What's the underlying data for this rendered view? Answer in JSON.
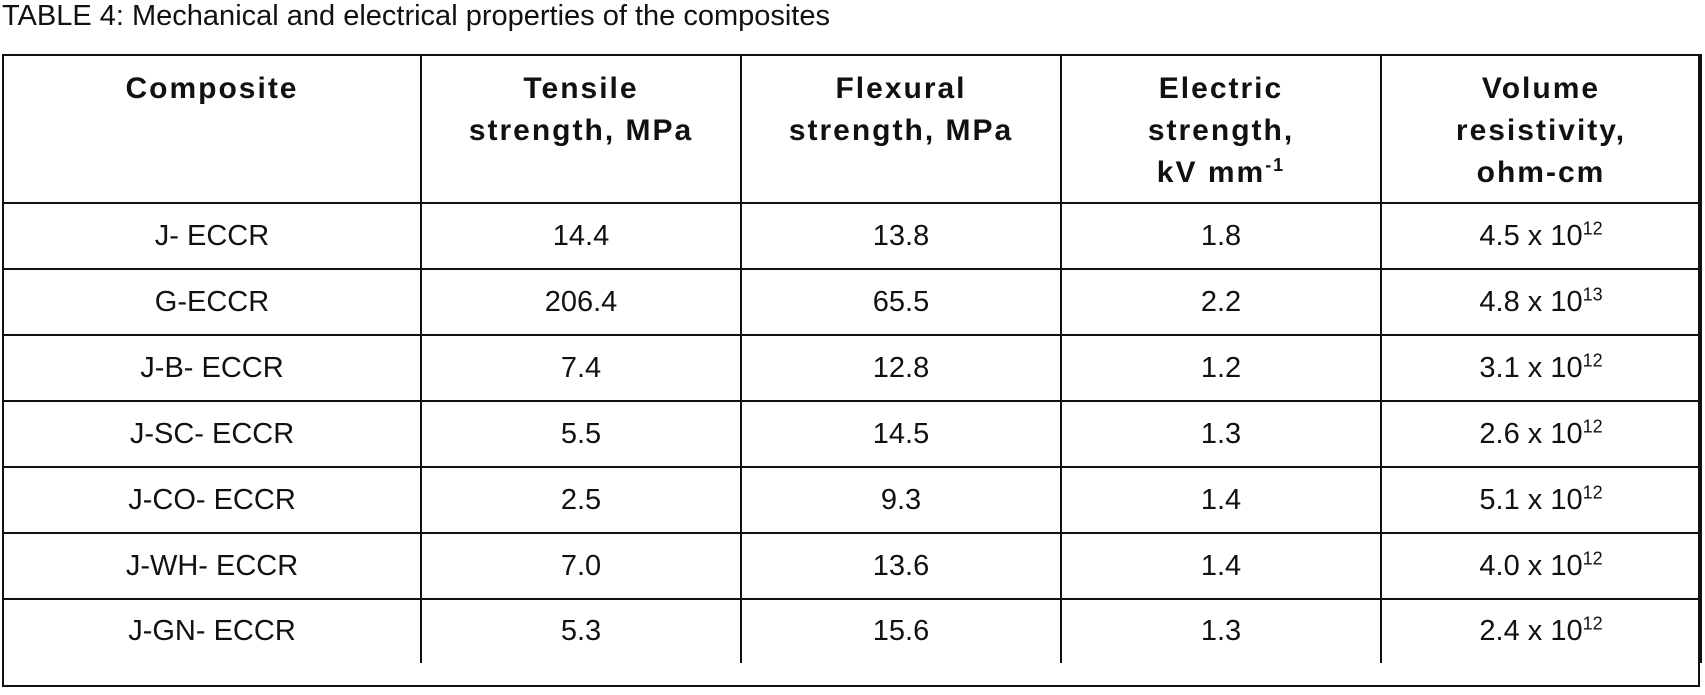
{
  "caption": "TABLE 4: Mechanical and electrical properties of the composites",
  "headers": {
    "composite": "Composite",
    "tensile_l1": "Tensile",
    "tensile_l2": "strength, MPa",
    "flexural_l1": "Flexural",
    "flexural_l2": "strength, MPa",
    "electric_l1": "Electric",
    "electric_l2": "strength,",
    "electric_l3": "kV mm",
    "electric_exp": "-1",
    "volume_l1": "Volume",
    "volume_l2": "resistivity,",
    "volume_l3": "ohm-cm"
  },
  "rows": [
    {
      "composite": "J- ECCR",
      "tensile": "14.4",
      "flexural": "13.8",
      "electric": "1.8",
      "vr_base": "4.5 x 10",
      "vr_exp": "12"
    },
    {
      "composite": "G-ECCR",
      "tensile": "206.4",
      "flexural": "65.5",
      "electric": "2.2",
      "vr_base": "4.8 x 10",
      "vr_exp": "13"
    },
    {
      "composite": "J-B- ECCR",
      "tensile": "7.4",
      "flexural": "12.8",
      "electric": "1.2",
      "vr_base": "3.1 x 10",
      "vr_exp": "12"
    },
    {
      "composite": "J-SC- ECCR",
      "tensile": "5.5",
      "flexural": "14.5",
      "electric": "1.3",
      "vr_base": "2.6 x 10",
      "vr_exp": "12"
    },
    {
      "composite": "J-CO- ECCR",
      "tensile": "2.5",
      "flexural": "9.3",
      "electric": "1.4",
      "vr_base": "5.1 x 10",
      "vr_exp": "12"
    },
    {
      "composite": "J-WH- ECCR",
      "tensile": "7.0",
      "flexural": "13.6",
      "electric": "1.4",
      "vr_base": "4.0 x 10",
      "vr_exp": "12"
    },
    {
      "composite": "J-GN- ECCR",
      "tensile": "5.3",
      "flexural": "15.6",
      "electric": "1.3",
      "vr_base": "2.4 x 10",
      "vr_exp": "12"
    }
  ]
}
